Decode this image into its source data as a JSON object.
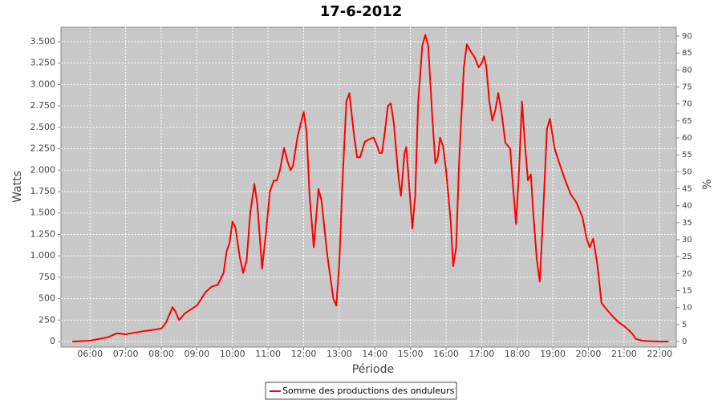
{
  "chart_data": {
    "type": "line",
    "title": "17-6-2012",
    "x_label": "Période",
    "y_label": "Watts",
    "y2_label": "%",
    "x": [
      "05:30",
      "06:00",
      "06:30",
      "06:45",
      "07:00",
      "07:30",
      "08:00",
      "08:08",
      "08:19",
      "08:24",
      "08:30",
      "08:40",
      "09:00",
      "09:15",
      "09:25",
      "09:35",
      "09:45",
      "09:50",
      "09:55",
      "10:00",
      "10:05",
      "10:12",
      "10:18",
      "10:24",
      "10:30",
      "10:37",
      "10:42",
      "10:50",
      "10:57",
      "11:03",
      "11:10",
      "11:15",
      "11:20",
      "11:27",
      "11:33",
      "11:38",
      "11:42",
      "11:50",
      "12:00",
      "12:05",
      "12:10",
      "12:17",
      "12:25",
      "12:30",
      "12:40",
      "12:50",
      "12:55",
      "13:00",
      "13:05",
      "13:12",
      "13:17",
      "13:25",
      "13:30",
      "13:35",
      "13:43",
      "13:50",
      "13:58",
      "14:03",
      "14:08",
      "14:12",
      "14:17",
      "14:22",
      "14:27",
      "14:32",
      "14:40",
      "14:44",
      "14:50",
      "14:53",
      "14:58",
      "15:03",
      "15:08",
      "15:13",
      "15:20",
      "15:25",
      "15:30",
      "15:37",
      "15:42",
      "15:46",
      "15:50",
      "15:55",
      "16:00",
      "16:08",
      "16:12",
      "16:17",
      "16:22",
      "16:30",
      "16:35",
      "16:42",
      "16:48",
      "16:55",
      "17:00",
      "17:04",
      "17:08",
      "17:13",
      "17:18",
      "17:23",
      "17:28",
      "17:33",
      "17:40",
      "17:48",
      "17:53",
      "17:58",
      "18:03",
      "18:08",
      "18:13",
      "18:18",
      "18:23",
      "18:27",
      "18:33",
      "18:38",
      "18:43",
      "18:50",
      "18:55",
      "19:03",
      "19:10",
      "19:20",
      "19:30",
      "19:40",
      "19:50",
      "19:57",
      "20:02",
      "20:08",
      "20:15",
      "20:22",
      "20:30",
      "20:40",
      "20:50",
      "21:00",
      "21:10",
      "21:15",
      "21:20",
      "21:30",
      "21:40",
      "22:00",
      "22:15"
    ],
    "series": [
      {
        "name": "Somme des productions des onduleurs",
        "color": "#ff0000",
        "values": [
          0,
          10,
          50,
          95,
          85,
          120,
          150,
          220,
          400,
          350,
          250,
          330,
          420,
          580,
          640,
          660,
          800,
          1050,
          1150,
          1400,
          1330,
          1000,
          800,
          950,
          1500,
          1840,
          1600,
          850,
          1300,
          1750,
          1880,
          1880,
          2000,
          2260,
          2100,
          2000,
          2050,
          2400,
          2680,
          2450,
          1700,
          1100,
          1780,
          1650,
          1000,
          500,
          420,
          900,
          1800,
          2800,
          2900,
          2400,
          2150,
          2150,
          2330,
          2360,
          2380,
          2300,
          2200,
          2200,
          2450,
          2750,
          2780,
          2550,
          1900,
          1700,
          2200,
          2270,
          1800,
          1320,
          1700,
          2800,
          3450,
          3580,
          3450,
          2600,
          2080,
          2150,
          2380,
          2280,
          2000,
          1400,
          880,
          1100,
          2100,
          3200,
          3470,
          3380,
          3320,
          3200,
          3250,
          3330,
          3200,
          2800,
          2580,
          2700,
          2900,
          2700,
          2320,
          2250,
          1800,
          1370,
          2000,
          2800,
          2300,
          1880,
          1950,
          1500,
          950,
          700,
          1400,
          2480,
          2600,
          2250,
          2100,
          1900,
          1720,
          1620,
          1450,
          1200,
          1100,
          1200,
          900,
          450,
          380,
          300,
          230,
          180,
          120,
          80,
          30,
          10,
          5,
          0,
          0
        ]
      }
    ],
    "xlim": [
      "05:11",
      "22:28"
    ],
    "xticks": [
      "06:00",
      "07:00",
      "08:00",
      "09:00",
      "10:00",
      "11:00",
      "12:00",
      "13:00",
      "14:00",
      "15:00",
      "16:00",
      "17:00",
      "18:00",
      "19:00",
      "20:00",
      "21:00",
      "22:00"
    ],
    "ylim": [
      -65,
      3668
    ],
    "yticks": [
      0,
      250,
      500,
      750,
      {
        "value": 1000,
        "label": "1.000"
      },
      {
        "value": 1250,
        "label": "1.250"
      },
      {
        "value": 1500,
        "label": "1.500"
      },
      {
        "value": 1750,
        "label": "1.750"
      },
      {
        "value": 2000,
        "label": "2.000"
      },
      {
        "value": 2250,
        "label": "2.250"
      },
      {
        "value": 2500,
        "label": "2.500"
      },
      {
        "value": 2750,
        "label": "2.750"
      },
      {
        "value": 3000,
        "label": "3.000"
      },
      {
        "value": 3250,
        "label": "3.250"
      },
      {
        "value": 3500,
        "label": "3.500"
      }
    ],
    "y2lim": [
      -1.65,
      92.6
    ],
    "y2ticks": [
      0,
      5,
      10,
      15,
      20,
      25,
      30,
      35,
      40,
      45,
      50,
      55,
      60,
      65,
      70,
      75,
      80,
      85,
      90
    ],
    "grid": true
  }
}
